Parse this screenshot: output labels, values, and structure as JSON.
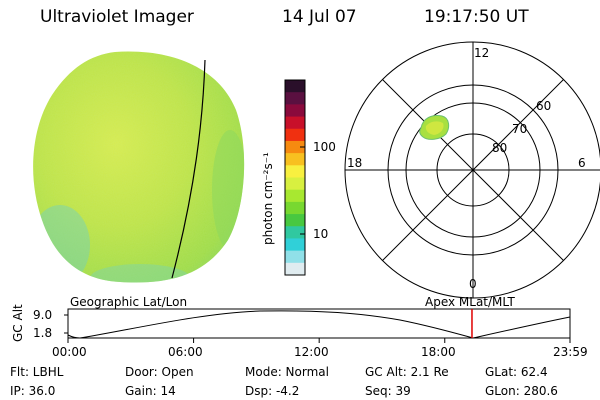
{
  "header": {
    "instrument": "Ultraviolet Imager",
    "date": "14 Jul 07",
    "time": "19:17:50 UT"
  },
  "colorbar": {
    "label": "photon cm⁻²s⁻¹",
    "ticks": [
      {
        "value": 100,
        "label": "100"
      },
      {
        "value": 10,
        "label": "10"
      }
    ],
    "colors": [
      "#2a0f2a",
      "#5a1040",
      "#8a0a3c",
      "#c8102a",
      "#f03010",
      "#f68a10",
      "#f8c020",
      "#f8f040",
      "#d8f040",
      "#a8e830",
      "#78d830",
      "#48c840",
      "#30c8a0",
      "#30d0d8",
      "#90e0e8",
      "#e0ecf0"
    ]
  },
  "polar_plot": {
    "mlt_labels": {
      "top": "12",
      "left": "18",
      "right": "6",
      "bottom": "0"
    },
    "lat_labels": [
      "60",
      "70",
      "80"
    ]
  },
  "timeline": {
    "left_label": "Geographic Lat/Lon",
    "right_label": "Apex MLat/MLT",
    "ylabel": "GC Alt",
    "y_ticks": [
      "9.0",
      "1.8"
    ],
    "x_ticks": [
      "00:00",
      "06:00",
      "12:00",
      "18:00",
      "23:59"
    ],
    "marker_time_hours": 19.3
  },
  "info": {
    "filter": "Flt: LBHL",
    "ip": "IP: 36.0",
    "door": "Door: Open",
    "gain": "Gain: 14",
    "mode": "Mode: Normal",
    "dsp": "Dsp:     -4.2",
    "gc_alt": "GC Alt: 2.1 Re",
    "seq": "Seq: 39",
    "glat": "GLat: 62.4",
    "glon": "GLon: 280.6"
  },
  "colors": {
    "disk_base": "#b8e04a",
    "marker": "#e00000"
  }
}
